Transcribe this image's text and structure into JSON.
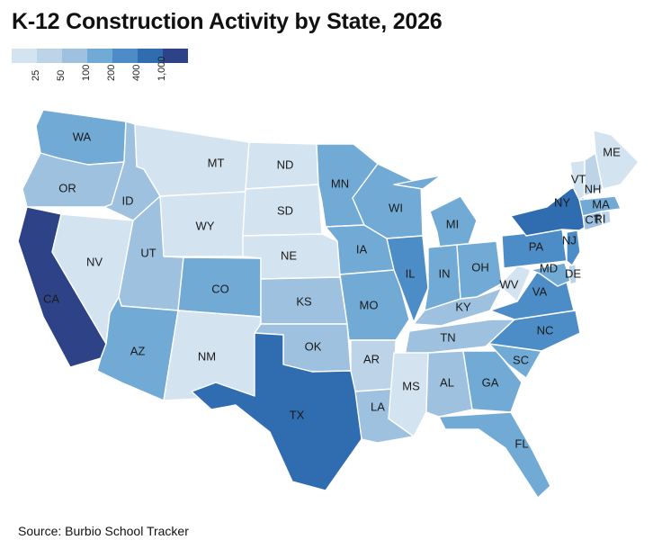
{
  "title": "K-12 Construction Activity by State, 2026",
  "source": "Source: Burbio School Tracker",
  "legend": {
    "labels": [
      "25",
      "50",
      "100",
      "200",
      "400",
      "1,000"
    ],
    "colors": [
      "#d4e3f0",
      "#bcd3e8",
      "#9dc1df",
      "#72aad6",
      "#4d8dc7",
      "#2f6cb0",
      "#2e4387"
    ]
  },
  "chart_data": {
    "type": "choropleth",
    "title": "K-12 Construction Activity by State, 2026",
    "scale_bins": [
      "<25",
      "25-50",
      "50-100",
      "100-200",
      "200-400",
      "400-1,000",
      ">1,000"
    ],
    "states": [
      {
        "code": "WA",
        "bin": 3
      },
      {
        "code": "OR",
        "bin": 2
      },
      {
        "code": "CA",
        "bin": 6
      },
      {
        "code": "NV",
        "bin": 0
      },
      {
        "code": "ID",
        "bin": 2
      },
      {
        "code": "MT",
        "bin": 0
      },
      {
        "code": "WY",
        "bin": 0
      },
      {
        "code": "UT",
        "bin": 2
      },
      {
        "code": "AZ",
        "bin": 3
      },
      {
        "code": "CO",
        "bin": 3
      },
      {
        "code": "NM",
        "bin": 0
      },
      {
        "code": "ND",
        "bin": 0
      },
      {
        "code": "SD",
        "bin": 0
      },
      {
        "code": "NE",
        "bin": 0
      },
      {
        "code": "KS",
        "bin": 2
      },
      {
        "code": "OK",
        "bin": 2
      },
      {
        "code": "TX",
        "bin": 5
      },
      {
        "code": "MN",
        "bin": 3
      },
      {
        "code": "IA",
        "bin": 3
      },
      {
        "code": "MO",
        "bin": 3
      },
      {
        "code": "AR",
        "bin": 1
      },
      {
        "code": "LA",
        "bin": 2
      },
      {
        "code": "WI",
        "bin": 3
      },
      {
        "code": "IL",
        "bin": 4
      },
      {
        "code": "MI",
        "bin": 3
      },
      {
        "code": "IN",
        "bin": 3
      },
      {
        "code": "OH",
        "bin": 3
      },
      {
        "code": "KY",
        "bin": 2
      },
      {
        "code": "TN",
        "bin": 2
      },
      {
        "code": "MS",
        "bin": 0
      },
      {
        "code": "AL",
        "bin": 2
      },
      {
        "code": "GA",
        "bin": 3
      },
      {
        "code": "FL",
        "bin": 3
      },
      {
        "code": "SC",
        "bin": 3
      },
      {
        "code": "NC",
        "bin": 4
      },
      {
        "code": "VA",
        "bin": 4
      },
      {
        "code": "WV",
        "bin": 0
      },
      {
        "code": "PA",
        "bin": 4
      },
      {
        "code": "MD",
        "bin": 3
      },
      {
        "code": "DE",
        "bin": 1
      },
      {
        "code": "NJ",
        "bin": 4
      },
      {
        "code": "NY",
        "bin": 5
      },
      {
        "code": "CT",
        "bin": 2
      },
      {
        "code": "RI",
        "bin": 1
      },
      {
        "code": "MA",
        "bin": 3
      },
      {
        "code": "VT",
        "bin": 0
      },
      {
        "code": "NH",
        "bin": 1
      },
      {
        "code": "ME",
        "bin": 0
      }
    ]
  }
}
